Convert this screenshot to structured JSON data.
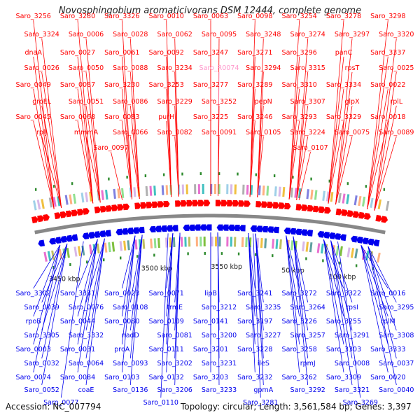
{
  "title": "Novosphingobium aromaticivorans DSM 12444, complete genome",
  "footer": {
    "accession": "Accession: NC_007794",
    "summary": "Topology: circular; Length: 3,561,584 bp; Genes: 3,397"
  },
  "colors": {
    "forward": "#ff0000",
    "reverse": "#0000ee",
    "rna": "#ff99cc",
    "backbone": "#888888",
    "feature_green": "#2e8b2e"
  },
  "ruler_labels": [
    "3450 kbp",
    "3500 kbp",
    "3550 kbp",
    "50 kbp",
    "100 kbp"
  ],
  "forward_labels": [
    "Saro_3256",
    "Saro_3280",
    "Saro_3326",
    "Saro_0010",
    "Saro_0063",
    "Saro_0098",
    "Saro_3254",
    "Saro_3278",
    "Saro_3298",
    "Saro_3324",
    "Saro_0006",
    "Saro_0028",
    "Saro_0062",
    "Saro_0095",
    "Saro_3248",
    "Saro_3274",
    "Saro_3297",
    "Saro_3320",
    "dnaA",
    "Saro_0027",
    "Saro_0061",
    "Saro_0092",
    "Saro_3247",
    "Saro_3271",
    "Saro_3296",
    "panC",
    "Saro_3337",
    "Saro_0026",
    "Saro_0050",
    "Saro_0088",
    "Saro_3234",
    "Saro_R0074",
    "Saro_3294",
    "Saro_3315",
    "rpsT",
    "Saro_0025",
    "Saro_0049",
    "Saro_0087",
    "Saro_3230",
    "Saro_3253",
    "Saro_3277",
    "Saro_3289",
    "Saro_3310",
    "Saro_3334",
    "Saro_0022",
    "groEL",
    "Saro_0051",
    "Saro_0086",
    "Saro_3229",
    "Saro_3252",
    "pepN",
    "Saro_3307",
    "glpX",
    "rplL",
    "Saro_0045",
    "Saro_0068",
    "Saro_0083",
    "purH",
    "Saro_3225",
    "Saro_3246",
    "Saro_3293",
    "Saro_3329",
    "Saro_0018",
    "rplJ",
    "mmmA",
    "Saro_0066",
    "Saro_0082",
    "Saro_0091",
    "Saro_0105",
    "Saro_3224",
    "Saro_0075",
    "Saro_0089",
    "Saro_0097",
    "Saro_0107"
  ],
  "reverse_labels": [
    "Saro_3302",
    "Saro_3331",
    "Saro_0023",
    "Saro_0071",
    "lipB",
    "Saro_3241",
    "Saro_3272",
    "Saro_3322",
    "Saro_0016",
    "Saro_0039",
    "Saro_0076",
    "Saro_0108",
    "trmE",
    "Saro_3212",
    "Saro_3235",
    "Saro_3264",
    "rpsI",
    "Saro_3295",
    "rpoB",
    "Saro_0044",
    "Saro_0080",
    "Saro_0109",
    "Saro_0141",
    "Saro_3197",
    "Saro_3226",
    "Saro_3255",
    "rplM",
    "Saro_3305",
    "Saro_3332",
    "nadD",
    "Saro_0081",
    "Saro_3200",
    "Saro_3227",
    "Saro_3257",
    "Saro_3291",
    "Saro_3308",
    "Saro_0003",
    "Saro_0031",
    "proA",
    "Saro_0111",
    "Saro_3201",
    "Saro_3228",
    "Saro_3258",
    "Saro_3303",
    "Saro_3333",
    "Saro_0032",
    "Saro_0064",
    "Saro_0093",
    "Saro_3202",
    "Saro_3231",
    "ileS",
    "rpmJ",
    "Saro_0008",
    "Saro_0037",
    "Saro_0074",
    "Saro_0084",
    "Saro_0103",
    "Saro_0132",
    "Saro_3203",
    "Saro_3232",
    "Saro_3262",
    "Saro_3309",
    "Saro_0020",
    "Saro_0052",
    "coaE",
    "Saro_0136",
    "Saro_3206",
    "Saro_3233",
    "gpmA",
    "Saro_3292",
    "Saro_3321",
    "Saro_0040",
    "Saro_0077",
    "Saro_0110",
    "Saro_3281",
    "Saro_3269"
  ]
}
